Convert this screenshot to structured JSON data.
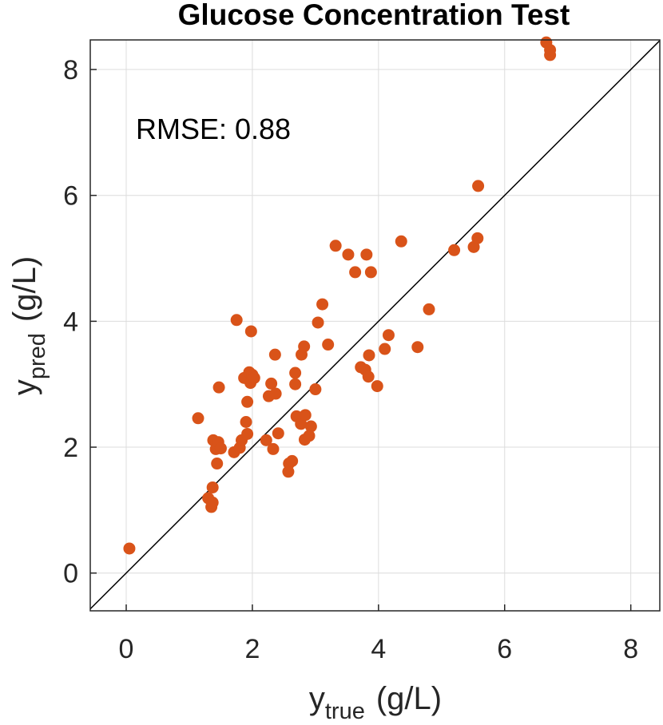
{
  "chart_data": {
    "type": "scatter",
    "title": "Glucose Concentration Test",
    "xlabel": {
      "base": "y",
      "sub": "true",
      "unit": "(g/L)"
    },
    "ylabel": {
      "base": "y",
      "sub": "pred",
      "unit": "(g/L)"
    },
    "annotation": "RMSE: 0.88",
    "xlim": [
      -0.57,
      8.46
    ],
    "ylim": [
      -0.6,
      8.47
    ],
    "xticks": [
      0,
      2,
      4,
      6,
      8
    ],
    "yticks": [
      0,
      2,
      4,
      6,
      8
    ],
    "grid": true,
    "series": [
      {
        "color": "#d95319",
        "x": [
          0.05,
          1.14,
          1.3,
          1.35,
          1.37,
          1.37,
          1.38,
          1.42,
          1.44,
          1.46,
          1.47,
          1.5,
          1.71,
          1.75,
          1.8,
          1.83,
          1.87,
          1.9,
          1.92,
          1.92,
          1.95,
          1.97,
          1.98,
          2.0,
          2.03,
          2.22,
          2.26,
          2.3,
          2.33,
          2.36,
          2.37,
          2.41,
          2.57,
          2.58,
          2.63,
          2.68,
          2.68,
          2.7,
          2.77,
          2.78,
          2.82,
          2.83,
          2.84,
          2.9,
          2.93,
          3.0,
          3.04,
          3.11,
          3.2,
          3.32,
          3.52,
          3.63,
          3.72,
          3.79,
          3.81,
          3.84,
          3.85,
          3.88,
          3.98,
          4.1,
          4.16,
          4.36,
          4.62,
          4.8,
          5.2,
          5.51,
          5.57,
          5.58,
          6.66,
          6.72,
          6.72
        ],
        "values": [
          0.39,
          2.46,
          1.19,
          1.05,
          1.12,
          1.36,
          2.11,
          1.97,
          1.74,
          2.08,
          2.95,
          1.98,
          1.92,
          4.02,
          1.99,
          2.11,
          3.1,
          2.4,
          2.72,
          2.21,
          3.19,
          3.02,
          3.84,
          3.15,
          3.1,
          2.11,
          2.81,
          3.01,
          1.97,
          3.47,
          2.85,
          2.22,
          1.61,
          1.74,
          1.78,
          3.18,
          3.0,
          2.49,
          2.37,
          3.47,
          3.6,
          2.12,
          2.51,
          2.18,
          2.33,
          2.92,
          3.98,
          4.27,
          3.63,
          5.2,
          5.06,
          4.78,
          3.27,
          3.23,
          5.06,
          3.12,
          3.46,
          4.78,
          2.97,
          3.56,
          3.78,
          5.27,
          3.59,
          4.19,
          5.13,
          5.18,
          5.32,
          6.15,
          8.43,
          8.31,
          8.23
        ]
      }
    ]
  }
}
